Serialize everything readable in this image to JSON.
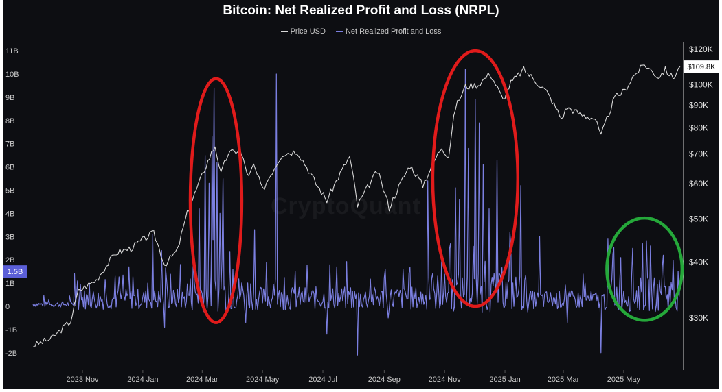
{
  "title": "Bitcoin: Net Realized Profit and Loss (NRPL)",
  "watermark": "CryptoQuant",
  "legend": [
    {
      "label": "Price USD",
      "color": "#d9d9d9"
    },
    {
      "label": "Net Realized Profit and Loss",
      "color": "#7b7fe0"
    }
  ],
  "current_value_labels": {
    "left": "1.5B",
    "right": "$109.8K"
  },
  "colors": {
    "background": "#0d0e12",
    "price": "#d9d9d9",
    "nrpl": "#7b7fe0",
    "red_circle": "#e01b1b",
    "green_circle": "#25a83a",
    "badge_left": "#5b5fd8"
  },
  "chart_data": {
    "type": "line",
    "title": "Bitcoin: Net Realized Profit and Loss (NRPL)",
    "x_tick_labels": [
      "2023 Nov",
      "2024 Jan",
      "2024 Mar",
      "2024 May",
      "2024 Jul",
      "2024 Sep",
      "2024 Nov",
      "2025 Jan",
      "2025 Mar",
      "2025 May"
    ],
    "x_tick_dates": [
      "2023-11-01",
      "2024-01-01",
      "2024-03-01",
      "2024-05-01",
      "2024-07-01",
      "2024-09-01",
      "2024-11-01",
      "2025-01-01",
      "2025-03-01",
      "2025-05-01"
    ],
    "x_range": [
      "2023-09-12",
      "2025-06-27"
    ],
    "y_left": {
      "label": "",
      "unit": "B",
      "ticks": [
        "11B",
        "10B",
        "9B",
        "8B",
        "7B",
        "6B",
        "5B",
        "4B",
        "3B",
        "2B",
        "1B",
        "0",
        "-1B",
        "-2B"
      ],
      "range": [
        -2.2,
        11
      ]
    },
    "y_right": {
      "label": "",
      "scale": "log",
      "ticks": [
        "$120K",
        "$100K",
        "$90K",
        "$80K",
        "$70K",
        "$60K",
        "$50K",
        "$40K",
        "$30K"
      ],
      "tick_values": [
        120000,
        100000,
        90000,
        80000,
        70000,
        60000,
        50000,
        40000,
        30000
      ],
      "range": [
        25000,
        120000
      ]
    },
    "series": [
      {
        "name": "Price USD",
        "axis": "right",
        "color": "#d9d9d9",
        "points": [
          [
            "2023-09-12",
            26000
          ],
          [
            "2023-10-01",
            27000
          ],
          [
            "2023-10-20",
            29500
          ],
          [
            "2023-10-28",
            34500
          ],
          [
            "2023-11-15",
            36500
          ],
          [
            "2023-12-05",
            42000
          ],
          [
            "2023-12-20",
            43000
          ],
          [
            "2024-01-08",
            46000
          ],
          [
            "2024-01-12",
            46500
          ],
          [
            "2024-01-23",
            39500
          ],
          [
            "2024-02-05",
            42500
          ],
          [
            "2024-02-15",
            51500
          ],
          [
            "2024-02-28",
            61000
          ],
          [
            "2024-03-05",
            66000
          ],
          [
            "2024-03-14",
            73000
          ],
          [
            "2024-03-20",
            63000
          ],
          [
            "2024-03-27",
            70000
          ],
          [
            "2024-04-08",
            71500
          ],
          [
            "2024-04-17",
            62000
          ],
          [
            "2024-04-22",
            66000
          ],
          [
            "2024-05-01",
            58000
          ],
          [
            "2024-05-21",
            70000
          ],
          [
            "2024-06-05",
            71000
          ],
          [
            "2024-06-24",
            60000
          ],
          [
            "2024-07-05",
            55000
          ],
          [
            "2024-07-28",
            69000
          ],
          [
            "2024-08-05",
            53500
          ],
          [
            "2024-08-25",
            64000
          ],
          [
            "2024-09-06",
            53000
          ],
          [
            "2024-09-27",
            66000
          ],
          [
            "2024-10-10",
            59500
          ],
          [
            "2024-10-29",
            72500
          ],
          [
            "2024-11-05",
            69000
          ],
          [
            "2024-11-12",
            89000
          ],
          [
            "2024-11-22",
            99000
          ],
          [
            "2024-12-05",
            100000
          ],
          [
            "2024-12-17",
            106000
          ],
          [
            "2024-12-30",
            92500
          ],
          [
            "2025-01-07",
            101000
          ],
          [
            "2025-01-20",
            108000
          ],
          [
            "2025-01-31",
            102500
          ],
          [
            "2025-02-12",
            96500
          ],
          [
            "2025-02-27",
            84000
          ],
          [
            "2025-03-05",
            89000
          ],
          [
            "2025-03-20",
            85500
          ],
          [
            "2025-04-02",
            84000
          ],
          [
            "2025-04-08",
            76500
          ],
          [
            "2025-04-22",
            93500
          ],
          [
            "2025-05-02",
            97000
          ],
          [
            "2025-05-10",
            104000
          ],
          [
            "2025-05-22",
            111000
          ],
          [
            "2025-06-05",
            104000
          ],
          [
            "2025-06-12",
            108000
          ],
          [
            "2025-06-20",
            103500
          ],
          [
            "2025-06-27",
            109800
          ]
        ]
      },
      {
        "name": "Net Realized Profit and Loss",
        "axis": "left",
        "unit": "B",
        "color": "#7b7fe0",
        "spikes": [
          [
            "2023-10-24",
            1.4
          ],
          [
            "2023-11-08",
            1.0
          ],
          [
            "2023-12-04",
            1.3
          ],
          [
            "2023-12-18",
            1.7
          ],
          [
            "2024-01-06",
            1.0
          ],
          [
            "2024-01-11",
            3.1
          ],
          [
            "2024-01-20",
            2.4
          ],
          [
            "2024-01-23",
            -0.9
          ],
          [
            "2024-02-08",
            1.8
          ],
          [
            "2024-02-27",
            4.2
          ],
          [
            "2024-03-04",
            6.5
          ],
          [
            "2024-03-08",
            5.3
          ],
          [
            "2024-03-11",
            7.3
          ],
          [
            "2024-03-13",
            9.4
          ],
          [
            "2024-03-16",
            6.2
          ],
          [
            "2024-03-19",
            4.0
          ],
          [
            "2024-03-22",
            5.5
          ],
          [
            "2024-04-01",
            1.6
          ],
          [
            "2024-04-14",
            -0.7
          ],
          [
            "2024-04-23",
            3.3
          ],
          [
            "2024-05-05",
            1.9
          ],
          [
            "2024-05-15",
            10.0
          ],
          [
            "2024-06-03",
            1.5
          ],
          [
            "2024-07-05",
            -1.2
          ],
          [
            "2024-07-15",
            1.7
          ],
          [
            "2024-07-29",
            0.8
          ],
          [
            "2024-08-05",
            -2.1
          ],
          [
            "2024-09-05",
            -0.5
          ],
          [
            "2024-09-20",
            1.6
          ],
          [
            "2024-10-15",
            5.4
          ],
          [
            "2024-10-29",
            2.0
          ],
          [
            "2024-11-06",
            2.5
          ],
          [
            "2024-11-12",
            5.1
          ],
          [
            "2024-11-16",
            4.6
          ],
          [
            "2024-11-22",
            10.2
          ],
          [
            "2024-11-25",
            6.8
          ],
          [
            "2024-12-02",
            8.9
          ],
          [
            "2024-12-06",
            7.9
          ],
          [
            "2024-12-10",
            6.1
          ],
          [
            "2024-12-16",
            4.2
          ],
          [
            "2024-12-24",
            6.3
          ],
          [
            "2025-01-07",
            2.6
          ],
          [
            "2025-01-17",
            5.2
          ],
          [
            "2025-02-05",
            3.0
          ],
          [
            "2025-03-05",
            -0.7
          ],
          [
            "2025-03-23",
            1.0
          ],
          [
            "2025-04-08",
            -2.0
          ],
          [
            "2025-04-15",
            2.9
          ],
          [
            "2025-04-28",
            2.1
          ],
          [
            "2025-05-10",
            2.5
          ],
          [
            "2025-05-20",
            2.7
          ],
          [
            "2025-05-28",
            2.6
          ],
          [
            "2025-06-10",
            2.2
          ],
          [
            "2025-06-25",
            1.5
          ]
        ]
      }
    ],
    "annotations": [
      {
        "shape": "ellipse",
        "color": "red",
        "x_range": [
          "2024-02-18",
          "2024-04-10"
        ],
        "y_range_left": [
          -0.7,
          9.8
        ]
      },
      {
        "shape": "ellipse",
        "color": "red",
        "x_range": [
          "2024-10-20",
          "2025-01-14"
        ],
        "y_range_left": [
          0,
          11
        ]
      },
      {
        "shape": "ellipse",
        "color": "green",
        "x_range": [
          "2025-04-14",
          "2025-06-29"
        ],
        "y_range_left": [
          -0.6,
          3.8
        ]
      }
    ]
  }
}
